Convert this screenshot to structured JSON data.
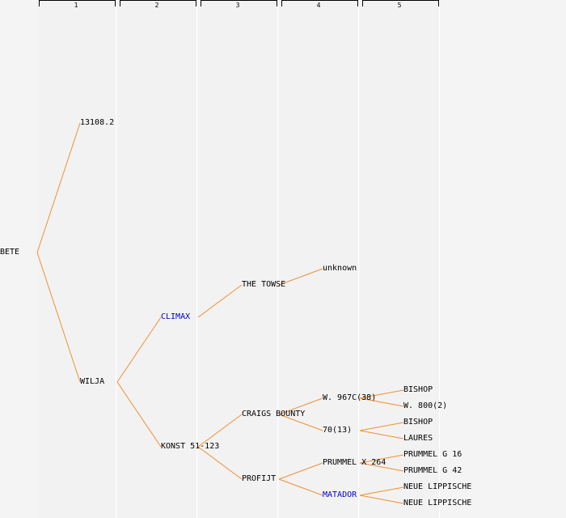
{
  "columns": [
    "1",
    "2",
    "3",
    "4",
    "5"
  ],
  "tree": {
    "label": "BETE",
    "children": [
      {
        "label": "13108.2"
      },
      {
        "label": "WILJA",
        "children": [
          {
            "label": "CLIMAX",
            "highlight": true,
            "children": [
              {
                "label": "THE TOWSE",
                "children": [
                  {
                    "label": "unknown"
                  }
                ]
              }
            ]
          },
          {
            "label": "KONST 51-123",
            "children": [
              {
                "label": "CRAIGS BOUNTY",
                "children": [
                  {
                    "label": "W. 967C(38)",
                    "children": [
                      {
                        "label": "BISHOP"
                      },
                      {
                        "label": "W. 800(2)"
                      }
                    ]
                  },
                  {
                    "label": "70(13)",
                    "children": [
                      {
                        "label": "BISHOP"
                      },
                      {
                        "label": "LAURES"
                      }
                    ]
                  }
                ]
              },
              {
                "label": "PROFIJT",
                "children": [
                  {
                    "label": "PRUMMEL X 264",
                    "children": [
                      {
                        "label": "PRUMMEL G 16"
                      },
                      {
                        "label": "PRUMMEL G 42"
                      }
                    ]
                  },
                  {
                    "label": "MATADOR",
                    "highlight": true,
                    "children": [
                      {
                        "label": "NEUE LIPPISCHE"
                      },
                      {
                        "label": "NEUE LIPPISCHE"
                      }
                    ]
                  }
                ]
              }
            ]
          }
        ]
      }
    ]
  },
  "colors": {
    "edge": "#f09030",
    "highlight_text": "#0000cc"
  }
}
